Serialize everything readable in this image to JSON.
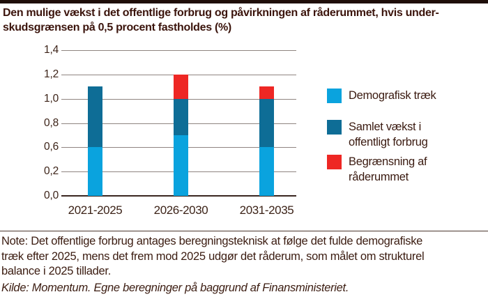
{
  "page": {
    "title": "Den mulige vækst i det offentlige forbrug og påvirkningen af råderummet, hvis under-\nskudsgrænsen på 0,5 procent fastholdes (%)",
    "note": "Note: Det offentlige forbrug antages beregningsteknisk at følge det fulde demografiske\ntræk efter 2025, mens det frem mod 2025 udgør det råderum, som målet om strukturel\nbalance i 2025 tillader.",
    "source": "Kilde: Momentum. Egne beregninger på baggrund af Finansministeriet."
  },
  "colors": {
    "top_accent_bar": "#1f0e09",
    "title_text": "#3b140c",
    "body_text": "#3b1c11",
    "axis_text": "#3c2318",
    "gridline": "#8f8480",
    "axis_line": "#3a2620",
    "light_blue": "#0aa3de",
    "dark_blue": "#0e6d96",
    "red": "#ee2724"
  },
  "legend": {
    "items": [
      {
        "label": "Demografisk træk",
        "color": "#0aa3de"
      },
      {
        "label": "Samlet vækst i\noffentligt forbrug",
        "color": "#0e6d96"
      },
      {
        "label": "Begrænsning af\nråderummet",
        "color": "#ee2724"
      }
    ]
  },
  "chart_data": {
    "type": "bar",
    "stacked": true,
    "title": "Den mulige vækst i det offentlige forbrug og påvirkningen af råderummet, hvis underskudsgrænsen på 0,5 procent fastholdes (%)",
    "unit": "%",
    "categories": [
      "2021-2025",
      "2026-2030",
      "2031-2035"
    ],
    "series": [
      {
        "name": "Demografisk træk",
        "color": "#0aa3de",
        "values": [
          0.6,
          0.7,
          0.6
        ]
      },
      {
        "name": "Samlet vækst i offentligt forbrug",
        "color": "#0e6d96",
        "values": [
          0.5,
          0.3,
          0.4
        ]
      },
      {
        "name": "Begrænsning af råderummet",
        "color": "#ee2724",
        "values": [
          0,
          0.2,
          0.1
        ]
      }
    ],
    "stack_totals": [
      1.1,
      1.2,
      1.1
    ],
    "ylim": [
      0,
      1.4
    ],
    "ytick_values": [
      1.4,
      1.2,
      1.0,
      0.8,
      0.6,
      0.2,
      0.0
    ],
    "ytick_labels": [
      "1,4",
      "1,2",
      "1,0",
      "0,8",
      "0,6",
      "0,2",
      "0,0"
    ],
    "grid": true,
    "legend_position": "right"
  }
}
